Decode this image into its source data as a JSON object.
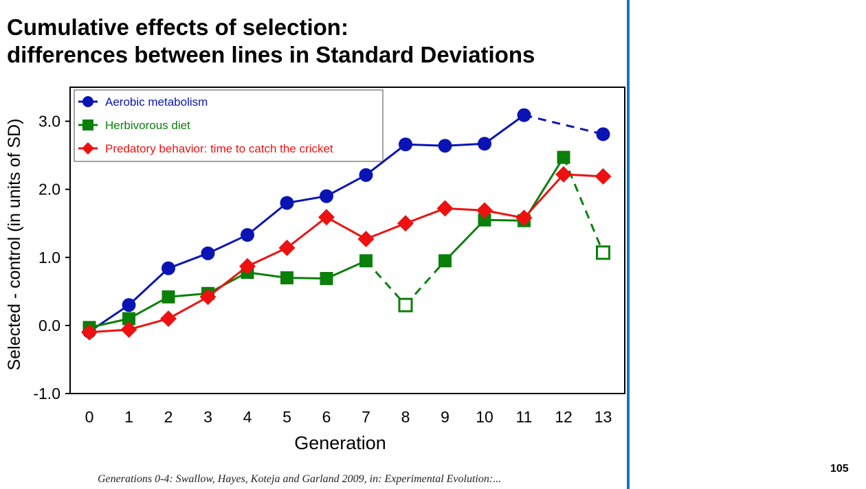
{
  "slide": {
    "title_line1": "Cumulative effects of selection:",
    "title_line2": "differences between lines in Standard Deviations",
    "page_number": "105",
    "citation": "Generations 0-4: Swallow, Hayes, Koteja and Garland  2009,  in: Experimental Evolution:..."
  },
  "colors": {
    "divider": "#1a74c4"
  },
  "chart_data": {
    "type": "line",
    "xlabel": "Generation",
    "ylabel": "Selected - control (in units of SD)",
    "x": [
      0,
      1,
      2,
      3,
      4,
      5,
      6,
      7,
      8,
      9,
      10,
      11,
      12,
      13
    ],
    "xticks": [
      "0",
      "1",
      "2",
      "3",
      "4",
      "5",
      "6",
      "7",
      "8",
      "9",
      "10",
      "11",
      "12",
      "13"
    ],
    "ylim": [
      -1.0,
      3.5
    ],
    "yticks": [
      -1.0,
      0.0,
      1.0,
      2.0,
      3.0
    ],
    "ytick_labels": [
      "-1.0",
      "0.0",
      "1.0",
      "2.0",
      "3.0"
    ],
    "grid": false,
    "legend_position": "top-left",
    "series": [
      {
        "name": "Aerobic metabolism",
        "color": "#0a14b4",
        "marker": "circle",
        "values": [
          -0.09,
          0.3,
          0.84,
          1.06,
          1.33,
          1.8,
          1.9,
          2.21,
          2.66,
          2.64,
          2.67,
          3.09,
          null,
          2.81
        ],
        "open": [],
        "dashed_segments": [
          [
            11,
            13
          ]
        ]
      },
      {
        "name": "Herbivorous diet",
        "color": "#0a7f0a",
        "marker": "square",
        "values": [
          -0.03,
          0.1,
          0.42,
          0.47,
          0.78,
          0.7,
          0.69,
          0.95,
          0.3,
          0.95,
          1.55,
          1.54,
          2.47,
          1.07
        ],
        "open": [
          8,
          13
        ],
        "dashed_segments": [
          [
            7,
            8
          ],
          [
            8,
            9
          ],
          [
            12,
            13
          ]
        ]
      },
      {
        "name": "Predatory behavior: time to catch the cricket",
        "color": "#ee1111",
        "marker": "diamond",
        "values": [
          -0.1,
          -0.06,
          0.1,
          0.42,
          0.87,
          1.14,
          1.59,
          1.27,
          1.5,
          1.72,
          1.69,
          1.58,
          2.22,
          2.19
        ],
        "open": [],
        "dashed_segments": []
      }
    ]
  }
}
